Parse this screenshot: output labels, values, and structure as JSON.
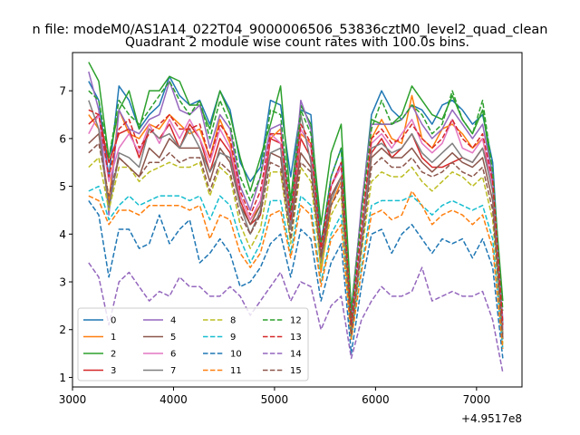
{
  "chart_data": {
    "type": "line",
    "suptitle": "n file: modeM0/AS1A14_022T04_9000006506_53836cztM0_level2_quad_clean",
    "title": "Quadrant 2 module wise count rates with 100.0s bins.",
    "xlabel": "",
    "ylabel": "",
    "x_offset_label": "+4.9517e8",
    "xlim": [
      3000,
      7450
    ],
    "ylim": [
      0.8,
      7.8
    ],
    "x_ticks": [
      3000,
      4000,
      5000,
      6000,
      7000
    ],
    "y_ticks": [
      1,
      2,
      3,
      4,
      5,
      6,
      7
    ],
    "grid": false,
    "legend_position": "lower-left",
    "x": [
      3160,
      3260,
      3360,
      3460,
      3560,
      3660,
      3760,
      3860,
      3960,
      4060,
      4160,
      4260,
      4360,
      4460,
      4560,
      4660,
      4760,
      4860,
      4960,
      5060,
      5160,
      5260,
      5360,
      5460,
      5560,
      5660,
      5760,
      5860,
      5960,
      6060,
      6160,
      6260,
      6360,
      6460,
      6560,
      6660,
      6760,
      6860,
      6960,
      7060,
      7160,
      7260
    ],
    "series": [
      {
        "name": "0",
        "color": "#1f77b4",
        "dash": "solid",
        "values": [
          7.2,
          6.8,
          5.2,
          7.1,
          6.8,
          6.2,
          6.5,
          6.7,
          7.3,
          6.9,
          6.7,
          6.8,
          6.3,
          7.0,
          6.6,
          5.5,
          5.1,
          5.4,
          6.8,
          6.7,
          5.2,
          6.6,
          6.5,
          3.8,
          5.2,
          5.8,
          2.4,
          4.5,
          6.5,
          7.0,
          6.6,
          6.4,
          6.7,
          6.6,
          6.3,
          6.7,
          6.8,
          6.6,
          6.3,
          6.5,
          5.5,
          2.1
        ]
      },
      {
        "name": "1",
        "color": "#ff7f0e",
        "dash": "solid",
        "values": [
          6.5,
          6.2,
          4.7,
          6.6,
          6.1,
          6.0,
          6.3,
          6.2,
          6.5,
          6.3,
          6.1,
          6.2,
          5.6,
          6.4,
          5.9,
          4.8,
          4.3,
          4.6,
          6.0,
          6.2,
          4.4,
          6.1,
          5.9,
          3.2,
          4.6,
          5.1,
          2.0,
          4.0,
          6.0,
          6.4,
          6.0,
          5.9,
          6.9,
          6.0,
          5.8,
          6.2,
          6.3,
          6.1,
          5.8,
          6.0,
          5.0,
          1.9
        ]
      },
      {
        "name": "2",
        "color": "#2ca02c",
        "dash": "solid",
        "values": [
          7.6,
          7.2,
          5.6,
          6.6,
          7.0,
          6.2,
          7.0,
          7.0,
          7.3,
          7.2,
          6.7,
          6.7,
          6.2,
          7.0,
          6.5,
          5.6,
          4.9,
          5.6,
          6.3,
          7.1,
          4.7,
          6.7,
          6.3,
          4.2,
          5.7,
          6.3,
          2.4,
          4.5,
          6.4,
          6.3,
          6.3,
          6.5,
          7.1,
          6.8,
          6.5,
          6.4,
          6.9,
          6.4,
          6.1,
          6.6,
          5.2,
          2.6
        ]
      },
      {
        "name": "3",
        "color": "#d62728",
        "dash": "solid",
        "values": [
          6.3,
          6.5,
          5.5,
          6.1,
          6.2,
          5.6,
          6.2,
          6.0,
          6.3,
          5.8,
          6.3,
          6.0,
          5.3,
          6.0,
          5.7,
          4.7,
          4.2,
          4.4,
          6.0,
          5.9,
          4.2,
          6.0,
          5.6,
          3.5,
          4.8,
          5.2,
          2.0,
          4.0,
          5.7,
          6.0,
          5.6,
          5.8,
          6.1,
          5.6,
          5.4,
          5.4,
          5.5,
          5.6,
          5.5,
          5.8,
          5.1,
          2.0
        ]
      },
      {
        "name": "4",
        "color": "#9467bd",
        "dash": "solid",
        "values": [
          7.4,
          6.6,
          4.4,
          6.6,
          6.2,
          6.1,
          6.4,
          6.5,
          7.2,
          6.6,
          6.5,
          6.7,
          5.8,
          6.5,
          6.2,
          5.0,
          4.5,
          5.2,
          6.2,
          6.3,
          4.4,
          6.8,
          6.2,
          3.6,
          5.0,
          5.5,
          2.2,
          4.6,
          6.3,
          6.3,
          6.3,
          6.4,
          6.7,
          6.3,
          6.0,
          6.2,
          6.6,
          6.3,
          6.0,
          6.3,
          5.2,
          2.2
        ]
      },
      {
        "name": "5",
        "color": "#8c564b",
        "dash": "solid",
        "values": [
          5.9,
          6.1,
          4.6,
          5.6,
          5.4,
          5.2,
          5.8,
          5.6,
          6.0,
          5.8,
          5.8,
          5.8,
          5.1,
          5.8,
          5.5,
          4.6,
          4.2,
          4.6,
          5.7,
          5.6,
          4.1,
          5.7,
          5.4,
          3.6,
          4.8,
          5.2,
          1.9,
          3.8,
          5.6,
          5.8,
          5.6,
          5.6,
          5.8,
          5.5,
          5.3,
          5.5,
          5.7,
          5.5,
          5.4,
          5.6,
          4.7,
          1.8
        ]
      },
      {
        "name": "6",
        "color": "#e377c2",
        "dash": "solid",
        "values": [
          6.1,
          6.5,
          5.1,
          5.8,
          6.1,
          5.7,
          6.3,
          5.9,
          6.4,
          6.0,
          6.4,
          6.0,
          5.5,
          6.2,
          5.8,
          4.8,
          4.3,
          4.7,
          6.1,
          5.9,
          4.2,
          6.2,
          5.8,
          3.7,
          5.0,
          5.4,
          2.0,
          4.0,
          5.9,
          6.1,
          5.8,
          6.1,
          6.4,
          5.9,
          5.7,
          5.9,
          6.4,
          5.8,
          5.7,
          6.0,
          5.0,
          2.0
        ]
      },
      {
        "name": "7",
        "color": "#7f7f7f",
        "dash": "solid",
        "values": [
          6.8,
          6.2,
          4.5,
          5.7,
          5.6,
          5.4,
          6.2,
          6.0,
          6.1,
          5.8,
          6.2,
          5.8,
          5.3,
          5.7,
          5.6,
          4.6,
          4.0,
          4.5,
          5.7,
          5.8,
          4.1,
          6.5,
          5.5,
          3.4,
          4.7,
          5.2,
          1.9,
          3.8,
          5.8,
          5.9,
          5.7,
          5.8,
          6.1,
          5.7,
          5.5,
          5.7,
          5.9,
          5.6,
          5.5,
          5.8,
          4.9,
          1.9
        ]
      },
      {
        "name": "8",
        "color": "#bcbd22",
        "dash": "dashed",
        "values": [
          5.4,
          5.6,
          4.5,
          5.4,
          5.4,
          5.1,
          5.3,
          5.4,
          5.5,
          5.4,
          5.4,
          5.5,
          4.8,
          5.4,
          5.2,
          4.2,
          3.7,
          4.1,
          5.3,
          5.3,
          3.8,
          5.4,
          5.1,
          3.3,
          4.4,
          4.8,
          1.8,
          3.6,
          5.1,
          5.3,
          5.2,
          5.2,
          5.4,
          5.1,
          4.9,
          5.1,
          5.3,
          5.2,
          5.0,
          5.2,
          4.3,
          1.7
        ]
      },
      {
        "name": "9",
        "color": "#17becf",
        "dash": "dashed",
        "values": [
          4.9,
          5.0,
          4.3,
          4.6,
          4.8,
          4.6,
          4.7,
          4.8,
          4.8,
          4.8,
          4.7,
          4.8,
          4.3,
          4.8,
          4.6,
          3.9,
          3.4,
          3.8,
          4.7,
          4.7,
          3.6,
          4.8,
          4.6,
          3.0,
          4.0,
          4.4,
          1.8,
          3.3,
          4.6,
          4.7,
          4.7,
          4.7,
          4.8,
          4.6,
          4.4,
          4.6,
          4.7,
          4.6,
          4.5,
          4.6,
          3.9,
          1.6
        ]
      },
      {
        "name": "10",
        "color": "#1f77b4",
        "dash": "dashed",
        "values": [
          4.7,
          4.4,
          3.1,
          4.1,
          4.1,
          3.7,
          3.8,
          4.4,
          3.8,
          4.1,
          4.3,
          3.4,
          3.6,
          3.9,
          3.6,
          2.9,
          3.0,
          3.3,
          3.8,
          4.0,
          3.1,
          4.1,
          3.9,
          2.6,
          3.4,
          3.8,
          1.5,
          2.9,
          4.0,
          4.1,
          3.6,
          4.0,
          4.2,
          3.9,
          3.6,
          3.9,
          3.8,
          3.9,
          3.5,
          3.9,
          3.3,
          1.4
        ]
      },
      {
        "name": "11",
        "color": "#ff7f0e",
        "dash": "dashed",
        "values": [
          4.8,
          4.7,
          4.2,
          4.5,
          4.5,
          4.4,
          4.6,
          4.6,
          4.6,
          4.6,
          4.5,
          4.6,
          3.9,
          4.4,
          4.3,
          3.6,
          3.3,
          3.6,
          4.4,
          4.5,
          3.5,
          4.6,
          4.4,
          2.9,
          3.9,
          4.2,
          1.8,
          3.2,
          4.4,
          4.5,
          4.3,
          4.4,
          4.9,
          4.6,
          4.2,
          4.4,
          4.5,
          4.4,
          4.2,
          4.4,
          3.7,
          1.6
        ]
      },
      {
        "name": "12",
        "color": "#2ca02c",
        "dash": "dashed",
        "values": [
          7.0,
          6.8,
          5.6,
          6.8,
          6.5,
          6.3,
          6.6,
          6.9,
          7.2,
          6.8,
          6.5,
          6.8,
          6.0,
          6.8,
          6.3,
          5.2,
          4.7,
          5.2,
          6.6,
          6.5,
          4.5,
          6.6,
          6.1,
          3.8,
          5.2,
          5.8,
          2.2,
          4.4,
          6.2,
          6.8,
          6.3,
          6.4,
          6.7,
          6.5,
          6.1,
          6.3,
          7.0,
          6.4,
          6.1,
          6.8,
          5.3,
          2.4
        ]
      },
      {
        "name": "13",
        "color": "#d62728",
        "dash": "dashed",
        "values": [
          6.6,
          6.5,
          5.2,
          6.2,
          6.4,
          5.8,
          6.1,
          6.3,
          6.5,
          6.2,
          6.2,
          6.3,
          5.6,
          6.3,
          6.0,
          4.9,
          4.4,
          4.9,
          6.1,
          6.1,
          4.3,
          6.3,
          5.9,
          3.7,
          5.0,
          5.5,
          2.1,
          4.1,
          6.0,
          6.2,
          5.9,
          6.0,
          6.3,
          6.0,
          5.8,
          6.0,
          6.4,
          6.0,
          5.8,
          6.1,
          5.1,
          2.1
        ]
      },
      {
        "name": "14",
        "color": "#9467bd",
        "dash": "dashed",
        "values": [
          3.4,
          3.1,
          2.1,
          3.0,
          3.2,
          2.9,
          2.6,
          2.8,
          2.7,
          3.1,
          2.9,
          2.9,
          2.7,
          2.7,
          2.9,
          2.7,
          2.3,
          2.6,
          2.9,
          3.2,
          2.6,
          3.0,
          2.9,
          2.0,
          2.5,
          2.7,
          1.4,
          2.2,
          2.6,
          2.9,
          2.7,
          2.7,
          2.8,
          3.3,
          2.6,
          2.7,
          2.8,
          2.7,
          2.7,
          2.8,
          2.2,
          1.1
        ]
      },
      {
        "name": "15",
        "color": "#8c564b",
        "dash": "dashed",
        "values": [
          5.7,
          5.9,
          4.8,
          5.6,
          5.4,
          5.2,
          5.5,
          5.5,
          5.7,
          5.5,
          5.6,
          5.6,
          4.9,
          5.5,
          5.3,
          4.4,
          4.0,
          4.4,
          5.5,
          5.4,
          3.9,
          5.5,
          5.3,
          3.5,
          4.6,
          5.0,
          1.9,
          3.7,
          5.4,
          5.6,
          5.4,
          5.4,
          5.6,
          5.3,
          5.2,
          5.3,
          5.5,
          5.3,
          5.2,
          5.4,
          4.5,
          1.8
        ]
      }
    ]
  }
}
